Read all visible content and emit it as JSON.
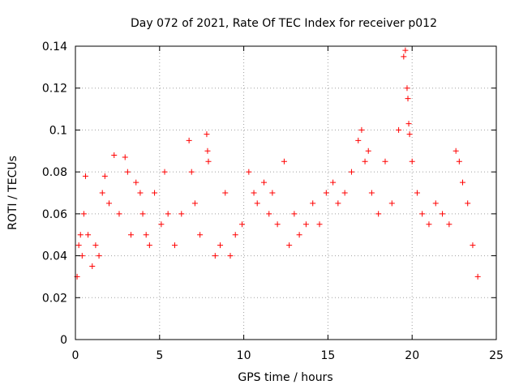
{
  "chart_data": {
    "type": "scatter",
    "title": "Day 072 of 2021, Rate Of TEC Index for receiver p012",
    "xlabel": "GPS time / hours",
    "ylabel": "ROTI / TECUs",
    "xlim": [
      0,
      25
    ],
    "ylim": [
      0,
      0.14
    ],
    "x_ticks": [
      0,
      5,
      10,
      15,
      20,
      25
    ],
    "x_tick_labels": [
      "0",
      "5",
      "10",
      "15",
      "20",
      "25"
    ],
    "y_ticks": [
      0,
      0.02,
      0.04,
      0.06,
      0.08,
      0.1,
      0.12,
      0.14
    ],
    "y_tick_labels": [
      "0",
      "0.02",
      "0.04",
      "0.06",
      "0.08",
      "0.1",
      "0.12",
      "0.14"
    ],
    "grid": true,
    "marker": "+",
    "color": "#ff0000",
    "series": [
      {
        "name": "ROTI",
        "x": [
          0.1,
          0.2,
          0.3,
          0.4,
          0.5,
          0.6,
          0.75,
          1.0,
          1.2,
          1.4,
          1.6,
          1.75,
          2.0,
          2.3,
          2.6,
          2.95,
          3.1,
          3.3,
          3.6,
          3.85,
          4.0,
          4.2,
          4.4,
          4.7,
          5.1,
          5.3,
          5.5,
          5.9,
          6.3,
          6.75,
          6.9,
          7.1,
          7.4,
          7.8,
          7.85,
          7.9,
          8.3,
          8.6,
          8.9,
          9.2,
          9.5,
          9.9,
          10.3,
          10.6,
          10.8,
          11.2,
          11.5,
          11.7,
          12.0,
          12.4,
          12.7,
          13.0,
          13.3,
          13.7,
          14.1,
          14.5,
          14.9,
          15.3,
          15.6,
          16.0,
          16.4,
          16.8,
          17.0,
          17.2,
          17.4,
          17.6,
          18.0,
          18.4,
          18.8,
          19.2,
          19.5,
          19.6,
          19.7,
          19.75,
          19.8,
          19.85,
          20.0,
          20.3,
          20.6,
          21.0,
          21.4,
          21.8,
          22.2,
          22.6,
          22.8,
          23.0,
          23.3,
          23.6,
          23.9
        ],
        "y": [
          0.03,
          0.045,
          0.05,
          0.04,
          0.06,
          0.078,
          0.05,
          0.035,
          0.045,
          0.04,
          0.07,
          0.078,
          0.065,
          0.088,
          0.06,
          0.087,
          0.08,
          0.05,
          0.075,
          0.07,
          0.06,
          0.05,
          0.045,
          0.07,
          0.055,
          0.08,
          0.06,
          0.045,
          0.06,
          0.095,
          0.08,
          0.065,
          0.05,
          0.098,
          0.09,
          0.085,
          0.04,
          0.045,
          0.07,
          0.04,
          0.05,
          0.055,
          0.08,
          0.07,
          0.065,
          0.075,
          0.06,
          0.07,
          0.055,
          0.085,
          0.045,
          0.06,
          0.05,
          0.055,
          0.065,
          0.055,
          0.07,
          0.075,
          0.065,
          0.07,
          0.08,
          0.095,
          0.1,
          0.085,
          0.09,
          0.07,
          0.06,
          0.085,
          0.065,
          0.1,
          0.135,
          0.138,
          0.12,
          0.115,
          0.103,
          0.098,
          0.085,
          0.07,
          0.06,
          0.055,
          0.065,
          0.06,
          0.055,
          0.09,
          0.085,
          0.075,
          0.065,
          0.045,
          0.03
        ]
      }
    ]
  }
}
